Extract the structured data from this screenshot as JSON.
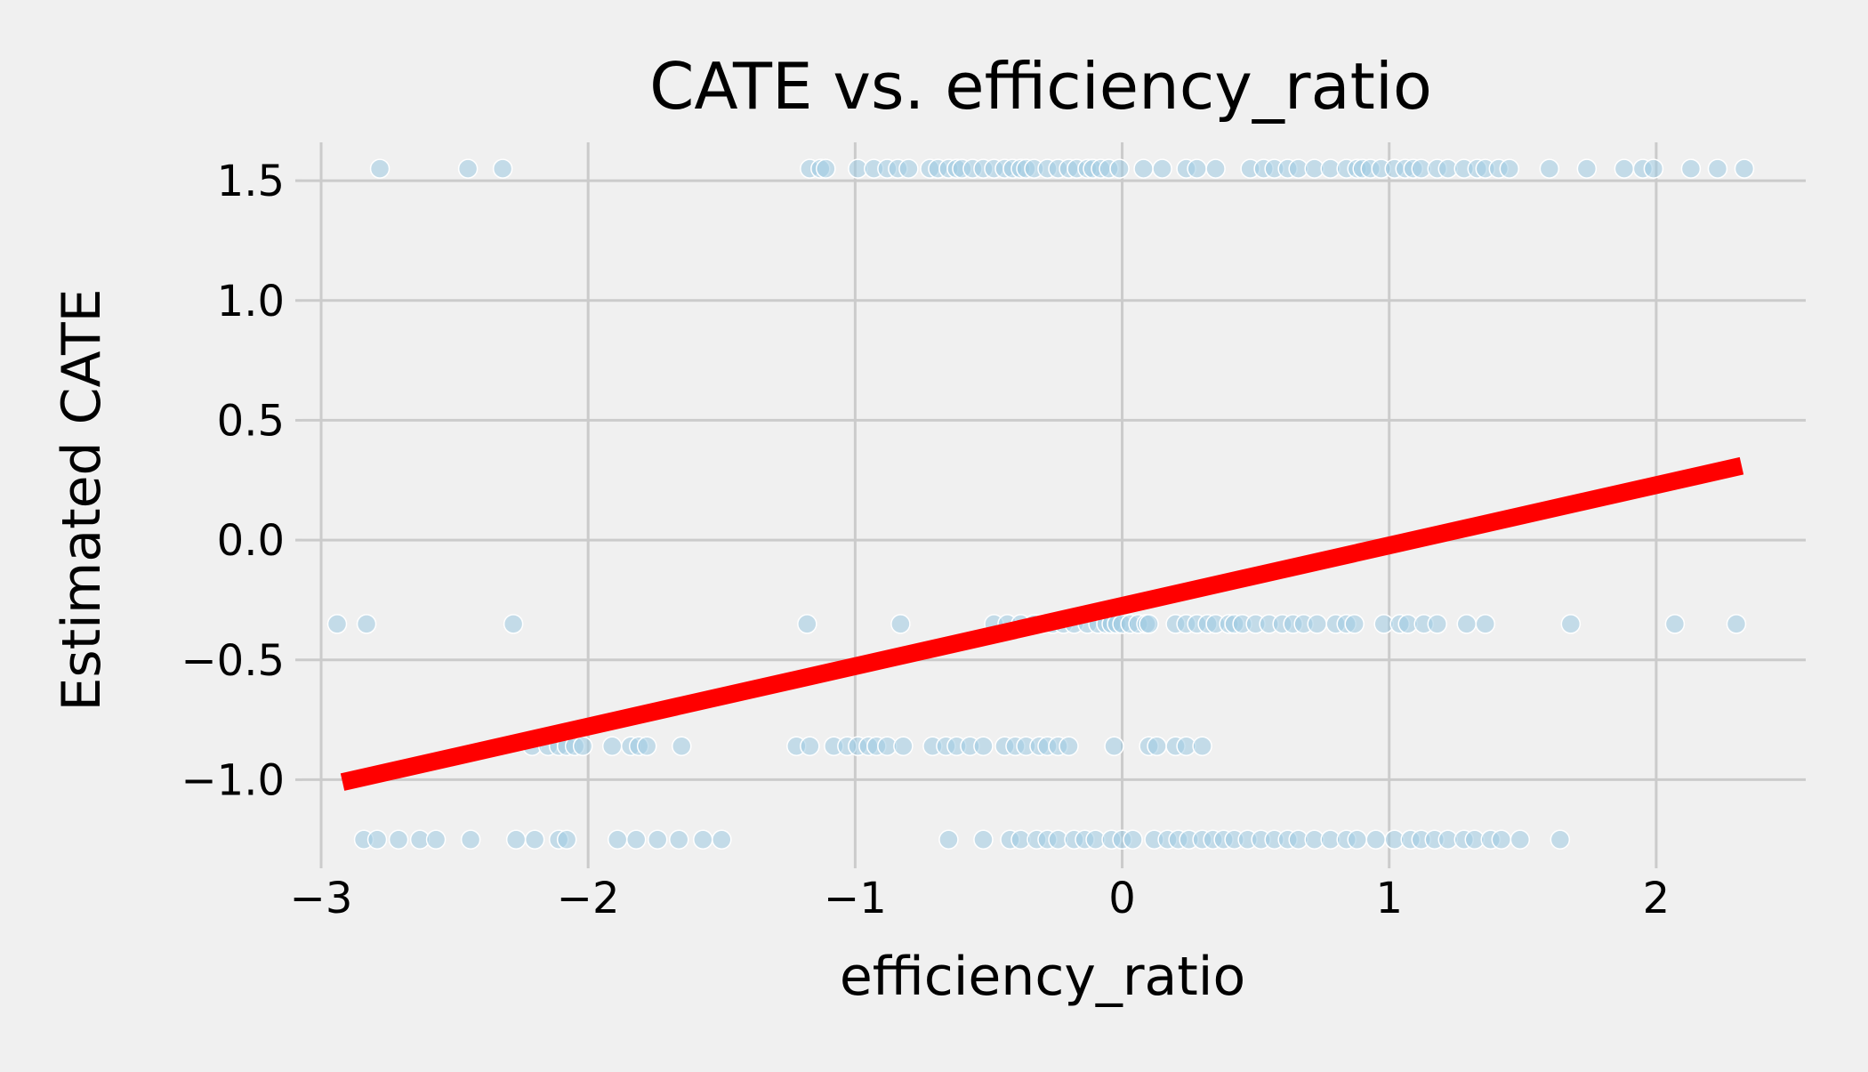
{
  "chart_data": {
    "type": "scatter",
    "title": "CATE vs. efficiency_ratio",
    "xlabel": "efficiency_ratio",
    "ylabel": "Estimated CATE",
    "xlim": [
      -3.07,
      2.56
    ],
    "ylim": [
      -1.34,
      1.66
    ],
    "xticks": [
      -3,
      -2,
      -1,
      0,
      1,
      2
    ],
    "xtick_labels": [
      "−3",
      "−2",
      "−1",
      "0",
      "1",
      "2"
    ],
    "yticks": [
      -1.0,
      -0.5,
      0.0,
      0.5,
      1.0,
      1.5
    ],
    "ytick_labels": [
      "−1.0",
      "−0.5",
      "0.0",
      "0.5",
      "1.0",
      "1.5"
    ],
    "grid": true,
    "background_color": "#f0f0f0",
    "point_color": "#9ecae1",
    "line_color": "#ff0000",
    "series": [
      {
        "type": "scatter",
        "levels": [
          {
            "y": 1.55,
            "x": [
              -2.78,
              -2.45,
              -2.32,
              -1.17,
              -1.13,
              -1.11,
              -0.99,
              -0.93,
              -0.88,
              -0.84,
              -0.8,
              -0.72,
              -0.69,
              -0.65,
              -0.62,
              -0.6,
              -0.56,
              -0.52,
              -0.48,
              -0.44,
              -0.41,
              -0.38,
              -0.36,
              -0.33,
              -0.28,
              -0.24,
              -0.2,
              -0.17,
              -0.13,
              -0.11,
              -0.08,
              -0.05,
              -0.01,
              0.08,
              0.15,
              0.24,
              0.28,
              0.35,
              0.48,
              0.53,
              0.57,
              0.62,
              0.66,
              0.72,
              0.78,
              0.84,
              0.88,
              0.9,
              0.93,
              0.97,
              1.02,
              1.06,
              1.09,
              1.12,
              1.18,
              1.22,
              1.28,
              1.33,
              1.36,
              1.41,
              1.45,
              1.6,
              1.74,
              1.88,
              1.95,
              1.99,
              2.13,
              2.23,
              2.33
            ]
          },
          {
            "y": -0.35,
            "x": [
              -2.94,
              -2.83,
              -2.28,
              -1.18,
              -0.83,
              -0.48,
              -0.43,
              -0.38,
              -0.33,
              -0.3,
              -0.26,
              -0.22,
              -0.18,
              -0.13,
              -0.09,
              -0.06,
              -0.04,
              -0.02,
              0.0,
              0.03,
              0.06,
              0.09,
              0.1,
              0.2,
              0.24,
              0.28,
              0.32,
              0.35,
              0.4,
              0.42,
              0.45,
              0.5,
              0.55,
              0.6,
              0.64,
              0.68,
              0.73,
              0.8,
              0.84,
              0.87,
              0.98,
              1.04,
              1.07,
              1.13,
              1.18,
              1.29,
              1.36,
              1.68,
              2.07,
              2.3
            ]
          },
          {
            "y": -0.86,
            "x": [
              -2.21,
              -2.15,
              -2.11,
              -2.08,
              -2.05,
              -2.02,
              -1.91,
              -1.84,
              -1.81,
              -1.78,
              -1.65,
              -1.22,
              -1.17,
              -1.08,
              -1.03,
              -0.99,
              -0.95,
              -0.92,
              -0.88,
              -0.82,
              -0.71,
              -0.66,
              -0.62,
              -0.57,
              -0.52,
              -0.44,
              -0.4,
              -0.36,
              -0.31,
              -0.28,
              -0.24,
              -0.2,
              -0.03,
              0.1,
              0.13,
              0.2,
              0.24,
              0.3
            ]
          },
          {
            "y": -1.25,
            "x": [
              -2.84,
              -2.79,
              -2.71,
              -2.63,
              -2.57,
              -2.44,
              -2.27,
              -2.2,
              -2.11,
              -2.08,
              -1.89,
              -1.82,
              -1.74,
              -1.66,
              -1.57,
              -1.5,
              -0.65,
              -0.52,
              -0.42,
              -0.38,
              -0.32,
              -0.28,
              -0.24,
              -0.18,
              -0.14,
              -0.1,
              -0.04,
              0.0,
              0.04,
              0.12,
              0.17,
              0.21,
              0.25,
              0.3,
              0.34,
              0.38,
              0.42,
              0.47,
              0.52,
              0.57,
              0.62,
              0.66,
              0.72,
              0.78,
              0.84,
              0.88,
              0.95,
              1.02,
              1.08,
              1.12,
              1.17,
              1.22,
              1.28,
              1.32,
              1.38,
              1.42,
              1.49,
              1.64
            ]
          }
        ]
      },
      {
        "type": "line",
        "x": [
          -2.92,
          2.32
        ],
        "y": [
          -1.01,
          0.31
        ]
      }
    ]
  }
}
